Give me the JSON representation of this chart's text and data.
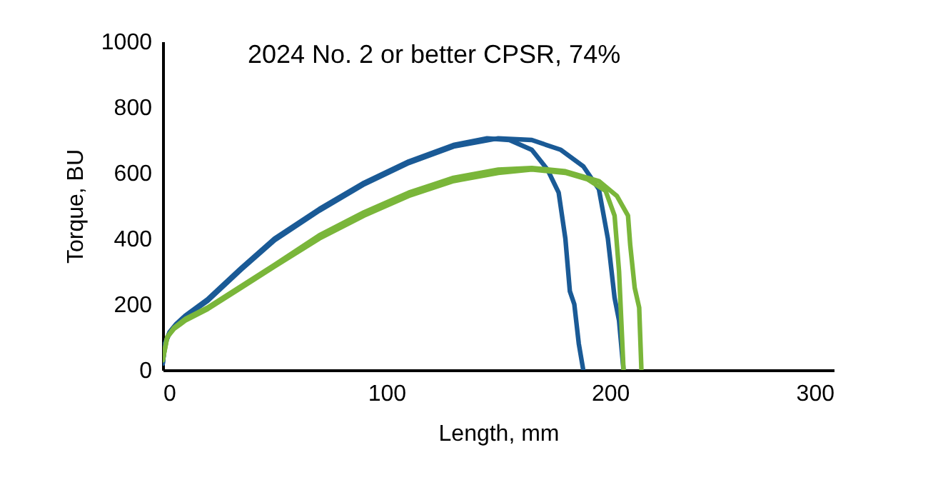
{
  "chart_data": {
    "type": "line",
    "title": "2024 No. 2 or better CPSR, 74%",
    "xlabel": "Length, mm",
    "ylabel": "Torque, BU",
    "xlim": [
      0,
      300
    ],
    "ylim": [
      0,
      1000
    ],
    "xticks": [
      0,
      100,
      200,
      300
    ],
    "yticks": [
      0,
      200,
      400,
      600,
      800,
      1000
    ],
    "series": [
      {
        "color": "#1a5a96",
        "x": [
          0,
          1,
          3,
          6,
          10,
          20,
          35,
          50,
          70,
          90,
          110,
          130,
          145,
          155,
          165,
          172,
          177,
          180,
          182,
          184,
          186,
          188
        ],
        "values": [
          20,
          80,
          115,
          140,
          165,
          215,
          310,
          400,
          490,
          570,
          635,
          685,
          705,
          700,
          670,
          610,
          540,
          400,
          240,
          200,
          80,
          0
        ]
      },
      {
        "color": "#1a5a96",
        "x": [
          0,
          1,
          3,
          6,
          10,
          20,
          35,
          50,
          70,
          90,
          110,
          130,
          150,
          165,
          178,
          188,
          195,
          199,
          202,
          204,
          206
        ],
        "values": [
          20,
          80,
          112,
          138,
          162,
          210,
          305,
          395,
          485,
          565,
          630,
          680,
          705,
          700,
          670,
          620,
          550,
          400,
          220,
          150,
          0
        ]
      },
      {
        "color": "#7ab63a",
        "x": [
          0,
          2,
          5,
          10,
          20,
          35,
          50,
          70,
          90,
          110,
          130,
          150,
          165,
          180,
          190,
          198,
          202,
          204,
          205,
          206
        ],
        "values": [
          30,
          100,
          125,
          150,
          185,
          250,
          315,
          400,
          470,
          530,
          575,
          600,
          610,
          600,
          580,
          545,
          470,
          300,
          150,
          0
        ]
      },
      {
        "color": "#7ab63a",
        "x": [
          0,
          2,
          5,
          10,
          20,
          35,
          50,
          70,
          90,
          110,
          130,
          150,
          165,
          180,
          195,
          203,
          208,
          209,
          211,
          213,
          214
        ],
        "values": [
          30,
          100,
          128,
          155,
          190,
          255,
          320,
          410,
          480,
          540,
          585,
          610,
          615,
          605,
          575,
          530,
          470,
          380,
          250,
          190,
          0
        ]
      }
    ]
  }
}
